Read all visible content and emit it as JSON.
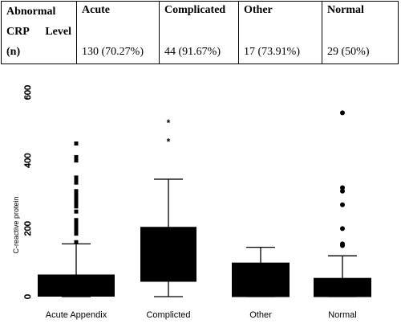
{
  "table": {
    "row_header": [
      "Abnormal",
      "CRP",
      "Level",
      "(n)"
    ],
    "columns": [
      {
        "label": "Acute",
        "value": "130 (70.27%)"
      },
      {
        "label": "Complicated",
        "value": "44 (91.67%)"
      },
      {
        "label": "Other",
        "value": "17 (73.91%)"
      },
      {
        "label": "Normal",
        "value": "29 (50%)"
      }
    ]
  },
  "chart_data": {
    "type": "box",
    "ylabel": "C-reactive protein",
    "ylim": [
      0,
      600
    ],
    "yticks": [
      "0",
      "200",
      "400",
      "600"
    ],
    "categories": [
      "Acute Appendix",
      "Complicted",
      "Other",
      "Normal"
    ],
    "boxes": [
      {
        "category": "Acute Appendix",
        "min": 0,
        "q1": 0,
        "median": 5,
        "q3": 65,
        "max": 155,
        "outliers": [
          160,
          185,
          195,
          200,
          205,
          210,
          215,
          220,
          225,
          250,
          265,
          275,
          285,
          290,
          300,
          310,
          335,
          345,
          350,
          400,
          410,
          450
        ]
      },
      {
        "category": "Complicted",
        "min": 0,
        "q1": 45,
        "median": 45,
        "q3": 205,
        "max": 345,
        "outliers": [
          455,
          510
        ]
      },
      {
        "category": "Other",
        "min": 0,
        "q1": 0,
        "median": 0,
        "q3": 100,
        "max": 145,
        "outliers": []
      },
      {
        "category": "Normal",
        "min": 0,
        "q1": 0,
        "median": 0,
        "q3": 55,
        "max": 120,
        "outliers": [
          150,
          155,
          200,
          270,
          310,
          320,
          540
        ]
      }
    ]
  }
}
